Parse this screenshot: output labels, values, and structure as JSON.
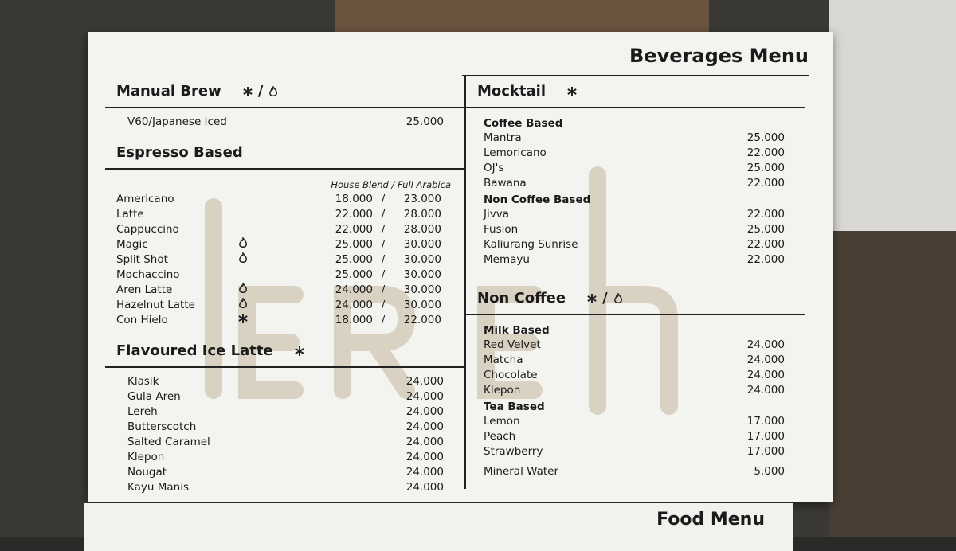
{
  "header": {
    "title": "Beverages Menu"
  },
  "separator": "/",
  "left": [
    {
      "title": "Manual Brew",
      "icons": [
        "cold",
        "hot"
      ],
      "items": [
        {
          "name": "V60/Japanese Iced",
          "price": "25.000"
        }
      ]
    },
    {
      "title": "Espresso Based",
      "columns_label": "House Blend / Full Arabica",
      "items": [
        {
          "name": "Americano",
          "prices": [
            "18.000",
            "23.000"
          ]
        },
        {
          "name": "Latte",
          "prices": [
            "22.000",
            "28.000"
          ]
        },
        {
          "name": "Cappuccino",
          "prices": [
            "22.000",
            "28.000"
          ]
        },
        {
          "name": "Magic",
          "icon": "hot",
          "prices": [
            "25.000",
            "30.000"
          ]
        },
        {
          "name": "Split Shot",
          "icon": "hot",
          "prices": [
            "25.000",
            "30.000"
          ]
        },
        {
          "name": "Mochaccino",
          "prices": [
            "25.000",
            "30.000"
          ]
        },
        {
          "name": "Aren Latte",
          "icon": "hot",
          "prices": [
            "24.000",
            "30.000"
          ]
        },
        {
          "name": "Hazelnut Latte",
          "icon": "hot",
          "prices": [
            "24.000",
            "30.000"
          ]
        },
        {
          "name": "Con Hielo",
          "icon": "cold",
          "prices": [
            "18.000",
            "22.000"
          ]
        }
      ]
    },
    {
      "title": "Flavoured Ice Latte",
      "icons": [
        "cold"
      ],
      "items": [
        {
          "name": "Klasik",
          "price": "24.000"
        },
        {
          "name": "Gula Aren",
          "price": "24.000"
        },
        {
          "name": "Lereh",
          "price": "24.000"
        },
        {
          "name": "Butterscotch",
          "price": "24.000"
        },
        {
          "name": "Salted Caramel",
          "price": "24.000"
        },
        {
          "name": "Klepon",
          "price": "24.000"
        },
        {
          "name": "Nougat",
          "price": "24.000"
        },
        {
          "name": "Kayu Manis",
          "price": "24.000"
        }
      ]
    }
  ],
  "right": [
    {
      "title": "Mocktail",
      "icons": [
        "cold"
      ],
      "groups": [
        {
          "title": "Coffee Based",
          "items": [
            {
              "name": "Mantra",
              "price": "25.000"
            },
            {
              "name": "Lemoricano",
              "price": "22.000"
            },
            {
              "name": "OJ's",
              "price": "25.000"
            },
            {
              "name": "Bawana",
              "price": "22.000"
            }
          ]
        },
        {
          "title": "Non Coffee Based",
          "items": [
            {
              "name": "Jivva",
              "price": "22.000"
            },
            {
              "name": "Fusion",
              "price": "25.000"
            },
            {
              "name": "Kaliurang Sunrise",
              "price": "22.000"
            },
            {
              "name": "Memayu",
              "price": "22.000"
            }
          ]
        }
      ]
    },
    {
      "title": "Non Coffee",
      "icons": [
        "cold",
        "hot"
      ],
      "groups": [
        {
          "title": "Milk Based",
          "items": [
            {
              "name": "Red Velvet",
              "price": "24.000"
            },
            {
              "name": "Matcha",
              "price": "24.000"
            },
            {
              "name": "Chocolate",
              "price": "24.000"
            },
            {
              "name": "Klepon",
              "price": "24.000"
            }
          ]
        },
        {
          "title": "Tea Based",
          "items": [
            {
              "name": "Lemon",
              "price": "17.000"
            },
            {
              "name": "Peach",
              "price": "17.000"
            },
            {
              "name": "Strawberry",
              "price": "17.000"
            }
          ]
        },
        {
          "items": [
            {
              "name": "Mineral Water",
              "price": "5.000"
            }
          ]
        }
      ]
    }
  ],
  "footer": {
    "title": "Food Menu"
  }
}
